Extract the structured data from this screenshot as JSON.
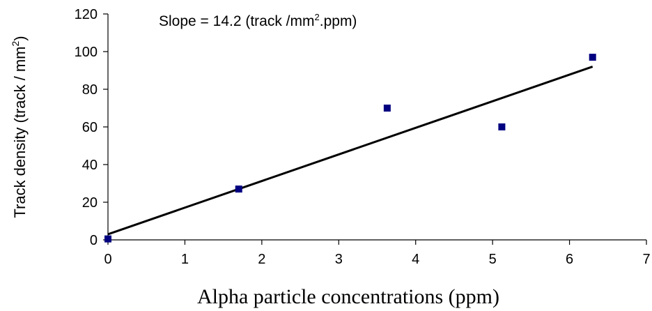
{
  "chart_data": {
    "type": "scatter",
    "xlabel": "Alpha  particle concentrations (ppm)",
    "ylabel_main": "Track density (track / mm",
    "ylabel_sup": "2",
    "ylabel_close": ")",
    "annotation": {
      "main": "Slope = 14.2 (track /mm",
      "sup": "2",
      "rest": ".ppm)"
    },
    "xlim": [
      0,
      7
    ],
    "ylim": [
      0,
      120
    ],
    "x_ticks": [
      "0",
      "1",
      "2",
      "3",
      "4",
      "5",
      "6",
      "7"
    ],
    "y_ticks": [
      "0",
      "20",
      "40",
      "60",
      "80",
      "100",
      "120"
    ],
    "grid": false,
    "legend": "none",
    "series": [
      {
        "x": [
          0,
          1.7,
          3.63,
          5.12,
          6.3
        ],
        "y": [
          0.5,
          27,
          70,
          60,
          97
        ],
        "marker_color": "#000080",
        "marker": "square"
      }
    ],
    "fit_line": {
      "x": [
        0,
        6.3
      ],
      "y": [
        3,
        92
      ],
      "color": "#000000"
    }
  }
}
